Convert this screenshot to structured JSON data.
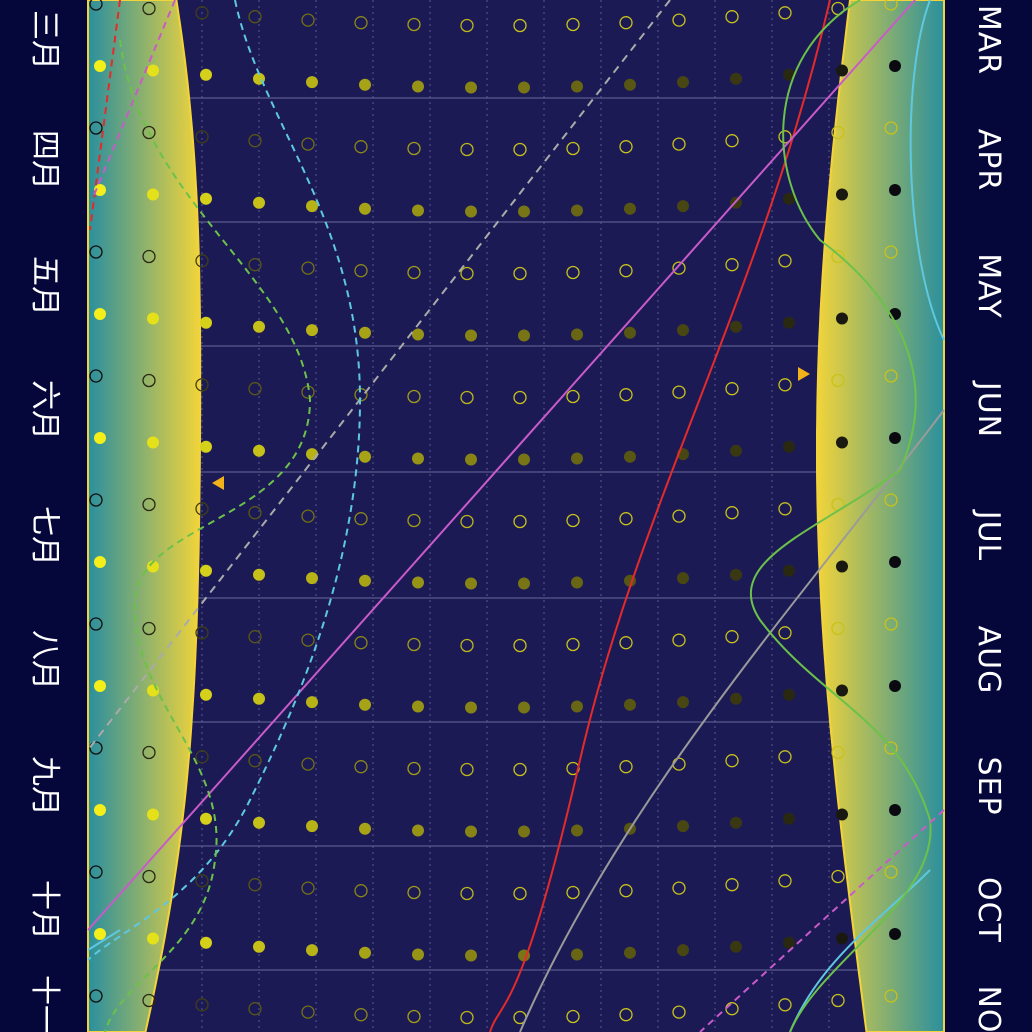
{
  "months_left": [
    "三月",
    "四月",
    "五月",
    "六月",
    "七月",
    "八月",
    "九月",
    "十月",
    "十一月"
  ],
  "months_right": [
    "MAR",
    "APR",
    "MAY",
    "JUN",
    "JUL",
    "AUG",
    "SEP",
    "OCT",
    "NOV"
  ],
  "colors": {
    "background": "#1b1a55",
    "margin_strip": "#05063a",
    "twilight_band_teal": "#2a8f9e",
    "twilight_band_yellow": "#f2d43a",
    "filled_dot_bright": "#f4ef1a",
    "hollow_dot": "#c8c21a",
    "curve_red": "#e52a2a",
    "curve_magenta": "#c85bc8",
    "curve_green": "#6cc14a",
    "curve_cyan": "#5ec8e0",
    "curve_gray": "#9a9a9a",
    "marker_orange": "#f2b21a"
  }
}
